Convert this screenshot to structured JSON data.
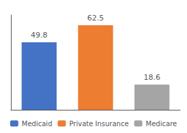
{
  "chart_data": {
    "type": "bar",
    "categories": [
      "Medicaid",
      "Private Insurance",
      "Medicare"
    ],
    "values": [
      49.8,
      62.5,
      18.6
    ],
    "colors": [
      "#4472c4",
      "#ed7d31",
      "#a5a5a5"
    ],
    "ylim": [
      0,
      70
    ],
    "data_labels": true,
    "tick_labels": false,
    "grid": false,
    "legend": "bottom"
  }
}
